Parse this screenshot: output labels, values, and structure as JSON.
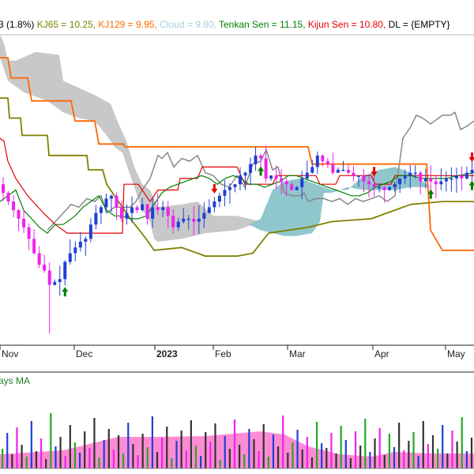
{
  "legend": {
    "items": [
      {
        "text": "3 (1.8%)",
        "color": "#000000"
      },
      {
        "text": "KJ65 = 10.25,",
        "color": "#808000"
      },
      {
        "text": "KJ129 = 9.95,",
        "color": "#ff6600"
      },
      {
        "text": "Cloud = 9.80,",
        "color": "#9fcfd6"
      },
      {
        "text": "Tenkan Sen = 11.15,",
        "color": "#008000"
      },
      {
        "text": "Kijun Sen = 10.80,",
        "color": "#e60000"
      },
      {
        "text": "DL = {EMPTY}",
        "color": "#000000"
      }
    ]
  },
  "volume_legend": "ays MA",
  "colors": {
    "up": "#1f3fd6",
    "down": "#ee22ee",
    "kj65": "#808000",
    "kj129": "#ff6600",
    "tenkan": "#008000",
    "kijun": "#e60000",
    "dl": "#888888",
    "cloud_bear": "#c8c8c8",
    "cloud_bull": "#8fc7cc",
    "arrow_up": "#008000",
    "arrow_down": "#e60000",
    "vol_ma": "#ff77cc",
    "vol_green": "#22aa22"
  },
  "chart_data": {
    "type": "candlestick",
    "x_ticks": [
      "Nov",
      "Dec",
      "2023",
      "Feb",
      "Mar",
      "Apr",
      "May"
    ],
    "ylim": [
      6.0,
      16.8
    ],
    "series": [
      {
        "name": "KJ65",
        "values": [
          [
            0,
            14.6
          ],
          [
            10,
            14.6
          ],
          [
            12,
            13.9
          ],
          [
            26,
            13.9
          ],
          [
            28,
            13.3
          ],
          [
            60,
            13.3
          ],
          [
            62,
            12.6
          ],
          [
            110,
            12.6
          ],
          [
            112,
            12.1
          ],
          [
            130,
            12.1
          ],
          [
            135,
            11.6
          ],
          [
            150,
            11.0
          ],
          [
            165,
            10.4
          ],
          [
            185,
            9.7
          ],
          [
            195,
            9.3
          ],
          [
            230,
            9.4
          ],
          [
            260,
            9.1
          ],
          [
            300,
            9.1
          ],
          [
            320,
            9.2
          ],
          [
            340,
            9.9
          ],
          [
            390,
            10.1
          ],
          [
            420,
            10.3
          ],
          [
            470,
            10.4
          ],
          [
            500,
            10.7
          ],
          [
            520,
            10.9
          ],
          [
            560,
            11.0
          ],
          [
            600,
            11.0
          ]
        ]
      },
      {
        "name": "KJ129",
        "values": [
          [
            0,
            16.0
          ],
          [
            10,
            16.0
          ],
          [
            14,
            15.3
          ],
          [
            35,
            15.3
          ],
          [
            40,
            14.5
          ],
          [
            90,
            14.5
          ],
          [
            95,
            13.8
          ],
          [
            120,
            13.8
          ],
          [
            125,
            13.0
          ],
          [
            156,
            13.0
          ],
          [
            158,
            12.9
          ],
          [
            390,
            12.9
          ],
          [
            395,
            12.3
          ],
          [
            540,
            12.3
          ],
          [
            545,
            10.0
          ],
          [
            560,
            9.3
          ],
          [
            600,
            9.3
          ]
        ]
      },
      {
        "name": "DL",
        "values": [
          [
            60,
            10.0
          ],
          [
            70,
            10.3
          ],
          [
            80,
            10.6
          ],
          [
            90,
            10.9
          ],
          [
            100,
            10.8
          ],
          [
            110,
            11.1
          ],
          [
            120,
            11.0
          ],
          [
            128,
            11.2
          ],
          [
            135,
            10.6
          ],
          [
            145,
            10.8
          ],
          [
            155,
            10.8
          ],
          [
            165,
            10.8
          ],
          [
            172,
            11.0
          ],
          [
            180,
            11.4
          ],
          [
            190,
            11.8
          ],
          [
            195,
            12.2
          ],
          [
            200,
            12.6
          ],
          [
            205,
            12.5
          ],
          [
            212,
            12.7
          ],
          [
            220,
            12.2
          ],
          [
            230,
            12.5
          ],
          [
            240,
            12.4
          ],
          [
            250,
            12.6
          ],
          [
            260,
            12.0
          ],
          [
            270,
            11.9
          ],
          [
            280,
            11.6
          ],
          [
            290,
            11.5
          ],
          [
            300,
            11.9
          ],
          [
            310,
            11.5
          ],
          [
            320,
            12.3
          ],
          [
            330,
            12.4
          ],
          [
            337,
            12.8
          ],
          [
            345,
            12.1
          ],
          [
            352,
            12.2
          ],
          [
            360,
            11.3
          ],
          [
            370,
            11.2
          ],
          [
            380,
            11.2
          ],
          [
            385,
            11.3
          ],
          [
            390,
            11.0
          ],
          [
            400,
            11.1
          ],
          [
            410,
            11.1
          ],
          [
            420,
            11.0
          ],
          [
            430,
            11.1
          ],
          [
            440,
            10.9
          ],
          [
            450,
            11.1
          ],
          [
            460,
            11.0
          ],
          [
            470,
            11.1
          ],
          [
            480,
            11.2
          ],
          [
            490,
            11.0
          ],
          [
            500,
            11.2
          ],
          [
            510,
            13.2
          ],
          [
            520,
            13.6
          ],
          [
            527,
            14.0
          ],
          [
            535,
            13.9
          ],
          [
            545,
            13.7
          ],
          [
            550,
            13.8
          ],
          [
            560,
            14.0
          ],
          [
            570,
            14.0
          ],
          [
            576,
            14.1
          ],
          [
            583,
            13.5
          ],
          [
            590,
            13.6
          ],
          [
            600,
            13.8
          ]
        ]
      },
      {
        "name": "Kijun Sen",
        "values": [
          [
            0,
            13.2
          ],
          [
            5,
            13.1
          ],
          [
            10,
            12.4
          ],
          [
            20,
            11.8
          ],
          [
            35,
            11.2
          ],
          [
            55,
            10.6
          ],
          [
            70,
            10.2
          ],
          [
            85,
            9.9
          ],
          [
            155,
            9.9
          ],
          [
            157,
            11.6
          ],
          [
            175,
            11.6
          ],
          [
            190,
            11.0
          ],
          [
            200,
            11.4
          ],
          [
            225,
            11.4
          ],
          [
            228,
            11.8
          ],
          [
            250,
            11.8
          ],
          [
            256,
            12.2
          ],
          [
            300,
            12.2
          ],
          [
            310,
            11.6
          ],
          [
            345,
            11.6
          ],
          [
            350,
            11.9
          ],
          [
            400,
            11.9
          ],
          [
            405,
            11.6
          ],
          [
            425,
            11.6
          ],
          [
            430,
            11.9
          ],
          [
            470,
            11.9
          ],
          [
            475,
            11.6
          ],
          [
            495,
            11.6
          ],
          [
            500,
            11.9
          ],
          [
            600,
            11.9
          ]
        ]
      },
      {
        "name": "Tenkan Sen",
        "values": [
          [
            0,
            11.0
          ],
          [
            10,
            11.2
          ],
          [
            20,
            11.4
          ],
          [
            30,
            10.7
          ],
          [
            40,
            10.4
          ],
          [
            50,
            10.1
          ],
          [
            60,
            9.9
          ],
          [
            70,
            10.2
          ],
          [
            80,
            10.2
          ],
          [
            95,
            10.5
          ],
          [
            105,
            10.8
          ],
          [
            115,
            11.0
          ],
          [
            125,
            11.2
          ],
          [
            135,
            10.7
          ],
          [
            145,
            10.5
          ],
          [
            155,
            10.5
          ],
          [
            165,
            10.4
          ],
          [
            175,
            10.4
          ],
          [
            185,
            10.5
          ],
          [
            195,
            10.9
          ],
          [
            205,
            11.3
          ],
          [
            215,
            11.5
          ],
          [
            225,
            11.6
          ],
          [
            235,
            11.7
          ],
          [
            245,
            11.8
          ],
          [
            255,
            11.9
          ],
          [
            265,
            11.8
          ],
          [
            275,
            11.6
          ],
          [
            285,
            11.8
          ],
          [
            295,
            11.9
          ],
          [
            305,
            11.8
          ],
          [
            315,
            11.6
          ],
          [
            325,
            11.6
          ],
          [
            335,
            11.5
          ],
          [
            345,
            11.6
          ],
          [
            355,
            11.7
          ],
          [
            365,
            11.9
          ],
          [
            375,
            11.9
          ],
          [
            385,
            11.8
          ],
          [
            395,
            11.7
          ],
          [
            405,
            11.6
          ],
          [
            415,
            11.5
          ],
          [
            425,
            11.4
          ],
          [
            435,
            11.3
          ],
          [
            445,
            11.2
          ],
          [
            455,
            11.2
          ],
          [
            465,
            11.3
          ],
          [
            475,
            11.5
          ],
          [
            485,
            11.6
          ],
          [
            495,
            11.7
          ],
          [
            505,
            11.9
          ],
          [
            520,
            11.9
          ],
          [
            535,
            11.8
          ],
          [
            550,
            11.8
          ],
          [
            565,
            11.8
          ],
          [
            580,
            11.9
          ],
          [
            600,
            12.0
          ]
        ]
      }
    ],
    "cloud_bearish": {
      "upper": [
        [
          0,
          16.8
        ],
        [
          5,
          16.5
        ],
        [
          10,
          15.9
        ],
        [
          20,
          15.9
        ],
        [
          45,
          16.2
        ],
        [
          75,
          16.1
        ],
        [
          80,
          15.2
        ],
        [
          120,
          14.7
        ],
        [
          140,
          14.4
        ],
        [
          150,
          13.7
        ],
        [
          160,
          13.1
        ],
        [
          170,
          12.2
        ],
        [
          180,
          11.6
        ],
        [
          190,
          11.4
        ],
        [
          200,
          10.8
        ],
        [
          230,
          10.9
        ],
        [
          250,
          11.0
        ],
        [
          270,
          10.5
        ],
        [
          300,
          10.5
        ],
        [
          330,
          10.3
        ]
      ],
      "lower": [
        [
          0,
          16.0
        ],
        [
          5,
          15.6
        ],
        [
          10,
          15.2
        ],
        [
          30,
          14.8
        ],
        [
          60,
          14.5
        ],
        [
          80,
          14.1
        ],
        [
          100,
          13.9
        ],
        [
          120,
          13.8
        ],
        [
          135,
          13.3
        ],
        [
          145,
          12.9
        ],
        [
          155,
          12.7
        ],
        [
          170,
          11.5
        ],
        [
          180,
          10.7
        ],
        [
          190,
          10.3
        ],
        [
          195,
          9.7
        ],
        [
          200,
          9.6
        ],
        [
          230,
          9.7
        ],
        [
          260,
          9.9
        ],
        [
          300,
          10.0
        ],
        [
          330,
          10.3
        ]
      ]
    },
    "cloud_bullish": {
      "upper": [
        [
          315,
          10.2
        ],
        [
          330,
          10.4
        ],
        [
          345,
          11.4
        ],
        [
          360,
          11.7
        ],
        [
          380,
          11.8
        ],
        [
          400,
          11.6
        ],
        [
          420,
          11.4
        ],
        [
          440,
          11.4
        ],
        [
          460,
          11.9
        ],
        [
          480,
          12.1
        ],
        [
          500,
          12.2
        ],
        [
          520,
          12.0
        ],
        [
          545,
          11.5
        ]
      ],
      "lower": [
        [
          315,
          10.2
        ],
        [
          330,
          10.0
        ],
        [
          345,
          9.9
        ],
        [
          360,
          9.8
        ],
        [
          375,
          9.8
        ],
        [
          395,
          9.9
        ],
        [
          405,
          10.3
        ],
        [
          410,
          11.3
        ],
        [
          420,
          11.3
        ],
        [
          440,
          11.5
        ],
        [
          460,
          11.4
        ],
        [
          480,
          11.4
        ],
        [
          500,
          11.4
        ],
        [
          520,
          11.5
        ],
        [
          545,
          11.5
        ]
      ]
    },
    "candles_seed": 7,
    "candles_close": [
      11.3,
      11.0,
      10.7,
      10.4,
      10.1,
      9.7,
      9.2,
      8.8,
      8.6,
      8.1,
      8.2,
      8.3,
      8.9,
      9.2,
      9.4,
      9.6,
      9.7,
      10.2,
      10.6,
      10.8,
      11.1,
      11.2,
      10.8,
      10.4,
      10.6,
      10.8,
      10.7,
      10.9,
      10.4,
      10.8,
      10.7,
      10.8,
      10.5,
      10.1,
      10.3,
      10.4,
      10.4,
      10.3,
      10.4,
      10.6,
      10.8,
      11.0,
      11.2,
      11.4,
      11.5,
      11.6,
      11.9,
      12.0,
      12.3,
      12.6,
      12.5,
      11.8,
      11.9,
      11.8,
      11.7,
      11.6,
      11.4,
      11.5,
      11.8,
      12.0,
      12.2,
      12.6,
      12.4,
      12.3,
      12.0,
      12.1,
      12.1,
      12.0,
      11.9,
      11.9,
      11.7,
      11.6,
      11.5,
      11.5,
      11.4,
      11.5,
      11.6,
      11.8,
      11.9,
      12.0,
      12.0,
      11.7,
      11.8,
      11.7,
      11.6,
      11.7,
      11.8,
      11.8,
      11.9,
      11.8,
      12.0,
      12.1
    ]
  },
  "volume": {
    "heights": [
      25,
      45,
      18,
      52,
      30,
      15,
      60,
      22,
      38,
      12,
      70,
      28,
      40,
      16,
      55,
      33,
      20,
      47,
      26,
      64,
      14,
      36,
      50,
      24,
      42,
      19,
      58,
      31,
      17,
      44,
      27,
      66,
      21,
      39,
      53,
      13,
      35,
      48,
      23,
      61,
      29,
      16,
      46,
      34,
      57,
      11,
      41,
      25,
      62,
      30,
      18,
      50,
      37,
      22,
      56,
      15,
      43,
      28,
      67,
      20,
      33,
      49,
      24,
      40,
      14,
      59,
      32,
      26,
      45,
      19,
      54,
      36,
      13,
      47,
      29,
      63,
      21,
      38,
      51,
      17,
      44,
      27,
      58,
      23,
      35,
      46,
      16,
      60,
      31,
      42,
      25,
      55,
      19,
      48,
      34,
      65,
      22,
      39
    ]
  },
  "signals": {
    "up_dates_idx": [
      12,
      50,
      83,
      126
    ],
    "down_dates_idx": [
      41,
      72,
      92
    ]
  }
}
